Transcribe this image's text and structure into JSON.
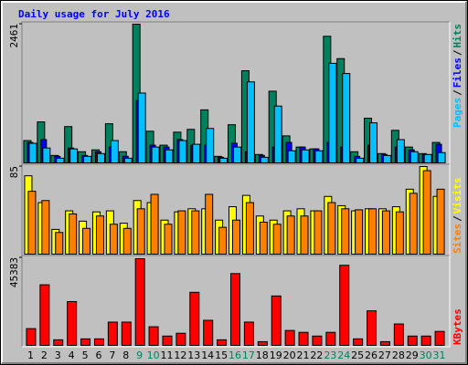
{
  "chart_data": [
    {
      "type": "bar",
      "title": "Daily usage for July 2016",
      "legend_separator": "/",
      "ylim": [
        0,
        2461
      ],
      "yticks": [
        2461
      ],
      "series": [
        {
          "name": "Hits",
          "color": "#00805c",
          "values": [
            396,
            727,
            132,
            644,
            198,
            231,
            694,
            198,
            2461,
            562,
            314,
            545,
            595,
            941,
            116,
            677,
            1635,
            149,
            1272,
            479,
            281,
            248,
            2246,
            1850,
            198,
            793,
            165,
            578,
            281,
            165,
            363
          ]
        },
        {
          "name": "Files",
          "color": "#0000ff",
          "values": [
            363,
            413,
            116,
            264,
            132,
            198,
            281,
            116,
            1107,
            314,
            281,
            413,
            314,
            314,
            99,
            347,
            198,
            132,
            281,
            363,
            281,
            248,
            363,
            281,
            116,
            314,
            149,
            281,
            231,
            149,
            330
          ]
        },
        {
          "name": "Pages",
          "color": "#00c0ff",
          "values": [
            347,
            264,
            83,
            248,
            116,
            165,
            396,
            83,
            1239,
            281,
            231,
            396,
            330,
            611,
            83,
            281,
            1437,
            99,
            1008,
            215,
            231,
            215,
            1767,
            1586,
            83,
            710,
            132,
            413,
            198,
            149,
            182
          ]
        }
      ]
    },
    {
      "type": "bar",
      "legend_separator": "/",
      "ylim": [
        0,
        85
      ],
      "yticks": [
        85
      ],
      "series": [
        {
          "name": "Visits",
          "color": "#ffff00",
          "values": [
            76,
            50,
            24,
            42,
            32,
            41,
            42,
            30,
            52,
            50,
            33,
            41,
            44,
            44,
            33,
            46,
            57,
            37,
            33,
            42,
            44,
            42,
            56,
            47,
            42,
            44,
            44,
            46,
            63,
            85,
            56
          ]
        },
        {
          "name": "Sites",
          "color": "#ff8000",
          "values": [
            61,
            52,
            21,
            39,
            25,
            37,
            29,
            25,
            44,
            58,
            29,
            42,
            42,
            58,
            26,
            33,
            50,
            31,
            29,
            37,
            37,
            42,
            50,
            44,
            43,
            44,
            42,
            41,
            59,
            81,
            63
          ]
        }
      ]
    },
    {
      "type": "bar",
      "ylim": [
        0,
        45383
      ],
      "yticks": [
        45383
      ],
      "series": [
        {
          "name": "KBytes",
          "color": "#ff0000",
          "values": [
            8690,
            31400,
            2900,
            22700,
            3380,
            3380,
            12070,
            12070,
            44900,
            9660,
            4830,
            6280,
            27500,
            13000,
            2900,
            37200,
            12070,
            1930,
            25600,
            7730,
            6760,
            4830,
            6760,
            41500,
            3380,
            17900,
            1930,
            11100,
            4830,
            4830,
            7240
          ]
        }
      ],
      "categories": [
        "1",
        "2",
        "3",
        "4",
        "5",
        "6",
        "7",
        "8",
        "9",
        "10",
        "11",
        "12",
        "13",
        "14",
        "15",
        "16",
        "17",
        "18",
        "19",
        "20",
        "21",
        "22",
        "23",
        "24",
        "25",
        "26",
        "27",
        "28",
        "29",
        "30",
        "31"
      ],
      "label_colors": [
        "#000000",
        "#000000",
        "#000000",
        "#000000",
        "#000000",
        "#000000",
        "#000000",
        "#000000",
        "#00805c",
        "#00805c",
        "#000000",
        "#000000",
        "#000000",
        "#000000",
        "#000000",
        "#00805c",
        "#00805c",
        "#000000",
        "#000000",
        "#000000",
        "#000000",
        "#000000",
        "#00805c",
        "#00805c",
        "#000000",
        "#000000",
        "#000000",
        "#000000",
        "#000000",
        "#00805c",
        "#00805c"
      ]
    }
  ]
}
